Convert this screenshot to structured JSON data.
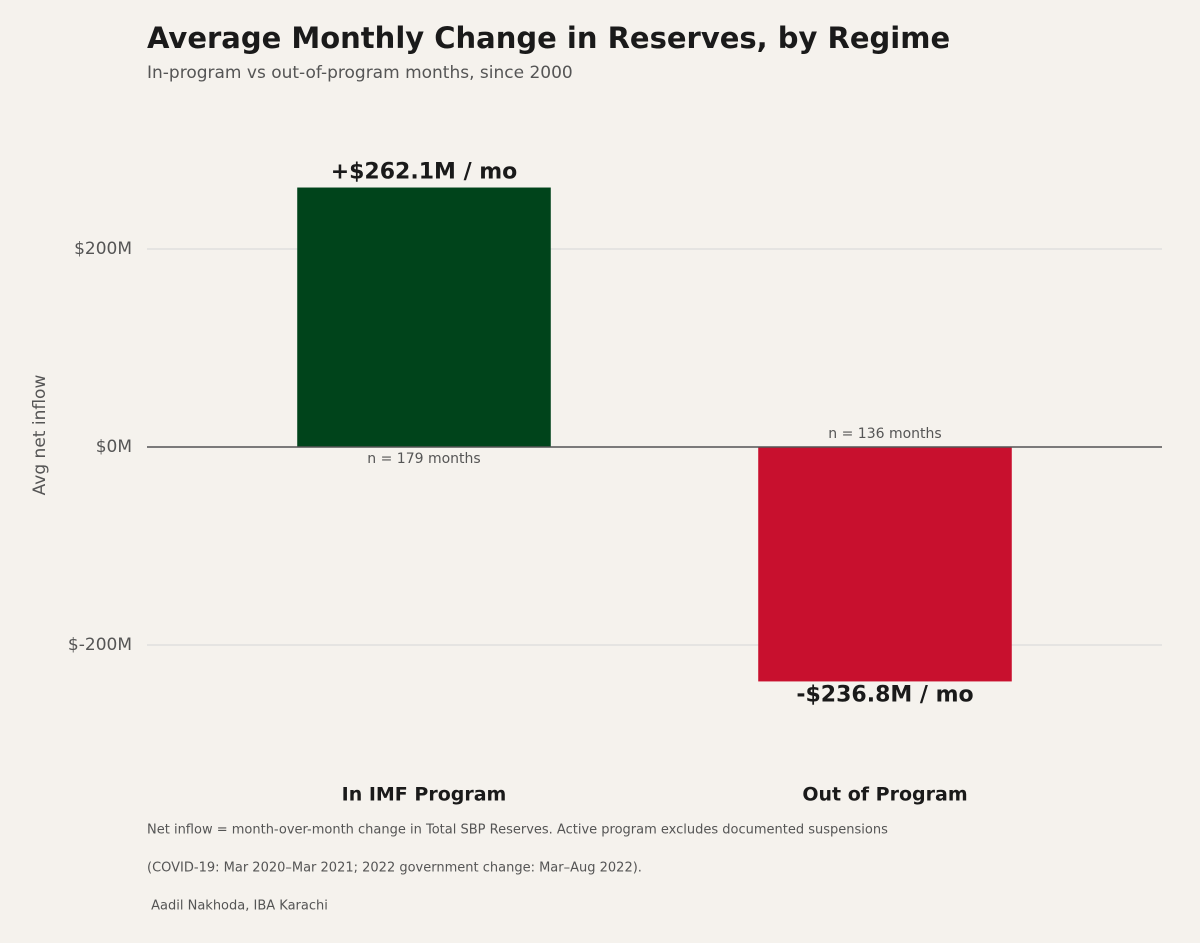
{
  "chart_data": {
    "type": "bar",
    "title": "Average Monthly Change in Reserves, by Regime",
    "subtitle": "In-program vs out-of-program months, since 2000",
    "y_label": "Avg net inflow",
    "categories": [
      "In IMF Program",
      "Out of Program"
    ],
    "values": [
      262.1,
      -236.8
    ],
    "value_labels": [
      "+$262.1M / mo",
      "-$236.8M / mo"
    ],
    "annotations": [
      "n = 179 months",
      "n = 136 months"
    ],
    "colors": [
      "#00441b",
      "#c8102e"
    ],
    "ylim": [
      -320,
      320
    ],
    "yticks": [
      {
        "value": -200,
        "label": "$-200M"
      },
      {
        "value": 0,
        "label": "$0M"
      },
      {
        "value": 200,
        "label": "$200M"
      }
    ],
    "grid": true,
    "footnotes": [
      "Net inflow = month-over-month change in Total SBP Reserves. Active program excludes documented suspensions",
      "(COVID-19: Mar 2020–Mar 2021; 2022 government change: Mar–Aug 2022).",
      " Aadil Nakhoda, IBA Karachi"
    ]
  }
}
